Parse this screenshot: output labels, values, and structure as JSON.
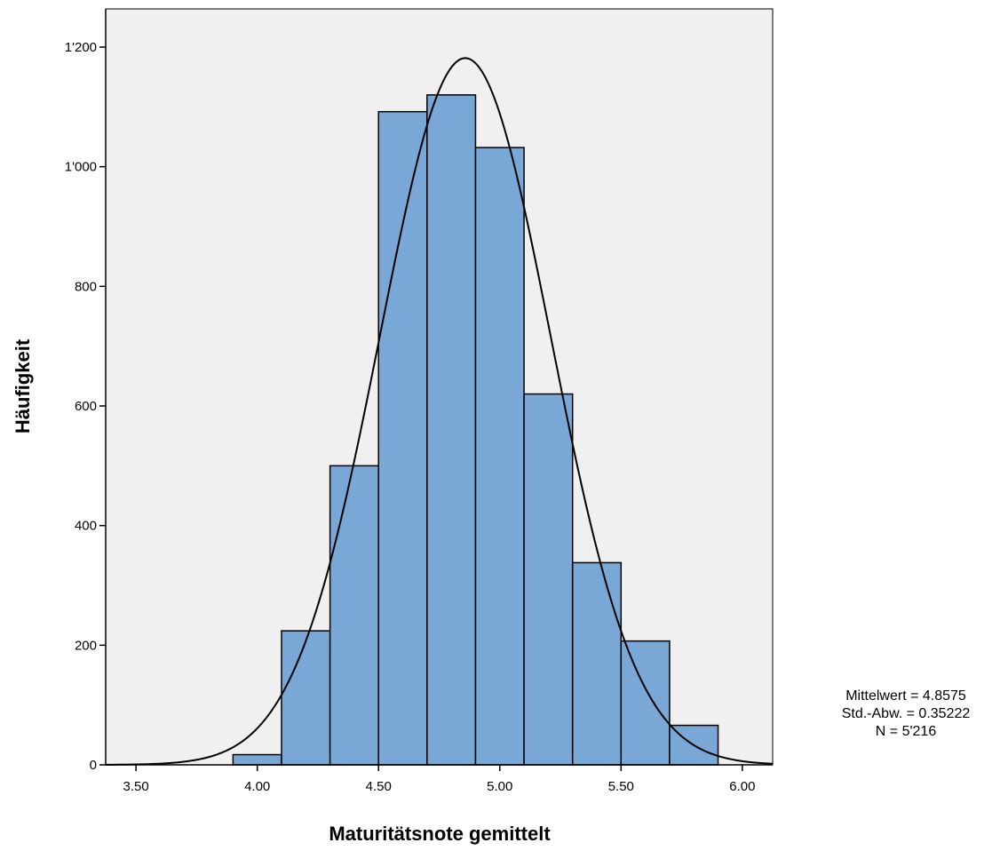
{
  "chart_data": {
    "type": "bar",
    "subtype": "histogram",
    "xlabel": "Maturitätsnote gemittelt",
    "ylabel": "Häufigkeit",
    "xlim": [
      3.375,
      6.125
    ],
    "ylim": [
      0,
      1200
    ],
    "x_ticks": [
      3.5,
      4.0,
      4.5,
      5.0,
      5.5,
      6.0
    ],
    "x_tick_labels": [
      "3.50",
      "4.00",
      "4.50",
      "5.00",
      "5.50",
      "6.00"
    ],
    "y_ticks": [
      0,
      200,
      400,
      600,
      800,
      1000,
      1200
    ],
    "y_tick_labels": [
      "0",
      "200",
      "400",
      "600",
      "800",
      "1'000",
      "1'200"
    ],
    "bins": [
      {
        "start": 3.9,
        "end": 4.1,
        "count": 17
      },
      {
        "start": 4.1,
        "end": 4.3,
        "count": 224
      },
      {
        "start": 4.3,
        "end": 4.5,
        "count": 500
      },
      {
        "start": 4.5,
        "end": 4.7,
        "count": 1092
      },
      {
        "start": 4.7,
        "end": 4.9,
        "count": 1120
      },
      {
        "start": 4.9,
        "end": 5.1,
        "count": 1032
      },
      {
        "start": 5.1,
        "end": 5.3,
        "count": 620
      },
      {
        "start": 5.3,
        "end": 5.5,
        "count": 338
      },
      {
        "start": 5.5,
        "end": 5.7,
        "count": 207
      },
      {
        "start": 5.7,
        "end": 5.9,
        "count": 66
      }
    ],
    "normal_curve": {
      "mean": 4.8575,
      "sd": 0.35222,
      "n": 5216,
      "bin_width": 0.2
    },
    "stats": [
      "Mittelwert = 4.8575",
      "Std.-Abw. = 0.35222",
      "N = 5'216"
    ],
    "grid": false,
    "colors": {
      "bar_fill": "#79a7d6",
      "bar_stroke": "#000000",
      "plot_bg": "#f0f0f0",
      "curve": "#000000"
    }
  }
}
